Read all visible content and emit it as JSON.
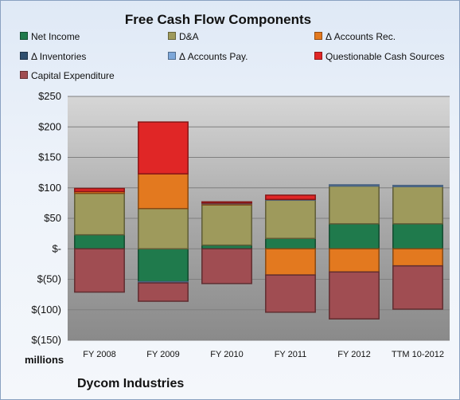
{
  "chart_data": {
    "type": "bar",
    "stacked": true,
    "title": "Free Cash Flow Components",
    "units_label": "millions",
    "company": "Dycom Industries",
    "categories": [
      "FY 2008",
      "FY 2009",
      "FY 2010",
      "FY 2011",
      "FY 2012",
      "TTM 10-2012"
    ],
    "ylim": [
      -150,
      250
    ],
    "yticks": [
      -150,
      -100,
      -50,
      0,
      50,
      100,
      150,
      200,
      250
    ],
    "ytick_labels": [
      "$(150)",
      "$(100)",
      "$(50)",
      "$-",
      "$50",
      "$100",
      "$150",
      "$200",
      "$250"
    ],
    "grid": true,
    "legend_position": "top",
    "series": [
      {
        "name": "Net Income",
        "color": "#1f7a4c",
        "values": [
          23,
          -54,
          6,
          17,
          41,
          41
        ]
      },
      {
        "name": "D&A",
        "color": "#9e9a5c",
        "values": [
          68,
          66,
          66,
          63,
          62,
          61
        ]
      },
      {
        "name": "Δ Accounts Rec.",
        "color": "#e3791f",
        "values": [
          3,
          57,
          2,
          -43,
          -38,
          -28
        ]
      },
      {
        "name": "Δ Inventories",
        "color": "#2f4f6f",
        "values": [
          0,
          0,
          0,
          0,
          0,
          0
        ]
      },
      {
        "name": "Δ Accounts Pay.",
        "color": "#7da7d9",
        "values": [
          0,
          -2,
          1,
          1,
          2,
          2
        ]
      },
      {
        "name": "Questionable Cash Sources",
        "color": "#e02626",
        "values": [
          5,
          85,
          2,
          7,
          0,
          0
        ]
      },
      {
        "name": "Capital Expenditure",
        "color": "#a04d52",
        "values": [
          -71,
          -30,
          -57,
          -61,
          -77,
          -71
        ]
      }
    ]
  }
}
